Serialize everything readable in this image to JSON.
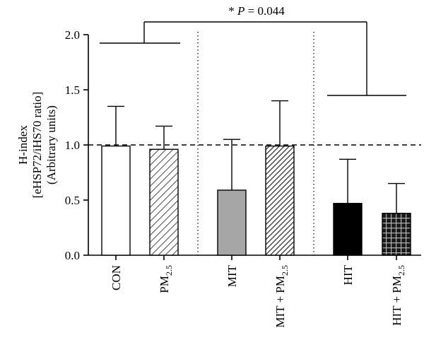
{
  "chart_data": {
    "type": "bar",
    "ylabel_lines": [
      "H-index",
      "[eHSP72/iHS70 ratio]",
      "(Arbitrary units)"
    ],
    "ylim": [
      0,
      2.0
    ],
    "yticks": [
      "0.0",
      "0.5",
      "1.0",
      "1.5",
      "2.0"
    ],
    "reference_line": 1.0,
    "categories": [
      {
        "label": "CON",
        "sub": "",
        "suffix": "",
        "value": 0.99,
        "err": 1.35,
        "fill": "white"
      },
      {
        "label": "PM",
        "sub": "2.5",
        "suffix": "",
        "value": 0.96,
        "err": 1.17,
        "fill": "hatch-light"
      },
      {
        "label": "MIT",
        "sub": "",
        "suffix": "",
        "value": 0.59,
        "err": 1.05,
        "fill": "gray"
      },
      {
        "label": "MIT + PM",
        "sub": "2.5",
        "suffix": "",
        "value": 0.99,
        "err": 1.4,
        "fill": "hatch-dense"
      },
      {
        "label": "HIT",
        "sub": "",
        "suffix": "",
        "value": 0.47,
        "err": 0.87,
        "fill": "black"
      },
      {
        "label": "HIT + PM",
        "sub": "2.5",
        "suffix": "",
        "value": 0.38,
        "err": 0.65,
        "fill": "grid"
      }
    ],
    "significance": {
      "star": "*",
      "p_label": "P",
      "p_value": "= 0.044"
    }
  },
  "colors": {
    "gray_bar": "#a6a6a6",
    "axis": "#000000"
  }
}
